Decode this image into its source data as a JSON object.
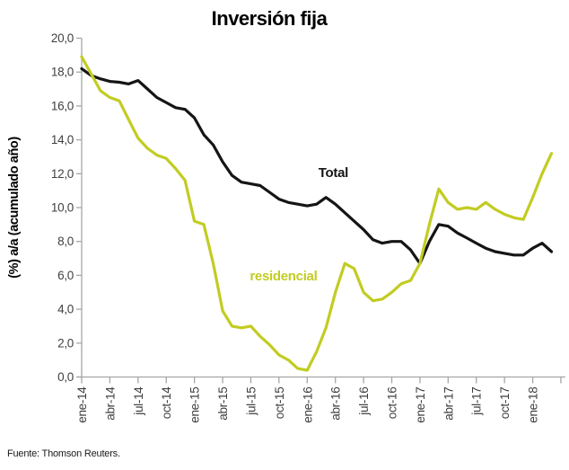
{
  "title": "Inversión fija",
  "source": "Fuente: Thomson Reuters.",
  "colors": {
    "total_line": "#151515",
    "residencial_line": "#c2cc21",
    "axis": "#a6a6a6",
    "tick_text": "#3f3f3f",
    "title_text": "#000000"
  },
  "chart_data": {
    "type": "line",
    "title": "Inversión fija",
    "xlabel": "",
    "ylabel": "(%) a/a (acumulado año)",
    "ylim": [
      0,
      20
    ],
    "ytick_step": 2,
    "ytick_labels": [
      "20,0",
      "18,0",
      "16,0",
      "14,0",
      "12,0",
      "10,0",
      "8,0",
      "6,0",
      "4,0",
      "2,0",
      "0,0"
    ],
    "xtick_labels": [
      "ene-14",
      "abr-14",
      "jul-14",
      "oct-14",
      "ene-15",
      "abr-15",
      "jul-15",
      "oct-15",
      "ene-16",
      "abr-16",
      "jul-16",
      "oct-16",
      "ene-17",
      "abr-17",
      "jul-17",
      "oct-17",
      "ene-18"
    ],
    "xtick_interval_months": 3,
    "x_start": "ene-14",
    "x_end": "mar-18",
    "grid": false,
    "legend_position": "inline-annotations",
    "series": [
      {
        "name": "Total",
        "color": "#151515",
        "values": [
          18.2,
          17.8,
          17.6,
          17.45,
          17.4,
          17.3,
          17.5,
          17.0,
          16.5,
          16.2,
          15.9,
          15.8,
          15.3,
          14.3,
          13.7,
          12.7,
          11.9,
          11.5,
          11.4,
          11.3,
          10.9,
          10.5,
          10.3,
          10.2,
          10.1,
          10.2,
          10.6,
          10.2,
          9.7,
          9.2,
          8.7,
          8.1,
          7.9,
          8.0,
          8.0,
          7.5,
          6.7,
          8.0,
          9.0,
          8.9,
          8.5,
          8.2,
          7.9,
          7.6,
          7.4,
          7.3,
          7.2,
          7.2,
          7.6,
          7.9,
          7.4
        ]
      },
      {
        "name": "residencial",
        "color": "#c2cc21",
        "values": [
          18.9,
          17.9,
          16.9,
          16.5,
          16.3,
          15.2,
          14.1,
          13.5,
          13.1,
          12.9,
          12.3,
          11.6,
          9.2,
          9.0,
          6.7,
          3.9,
          3.0,
          2.9,
          3.0,
          2.4,
          1.9,
          1.3,
          1.0,
          0.5,
          0.4,
          1.5,
          2.9,
          5.0,
          6.7,
          6.4,
          5.0,
          4.5,
          4.6,
          5.0,
          5.5,
          5.7,
          6.7,
          9.0,
          11.1,
          10.3,
          9.9,
          10.0,
          9.9,
          10.3,
          9.9,
          9.6,
          9.4,
          9.3,
          10.6,
          12.0,
          13.2
        ]
      }
    ],
    "annotations": [
      {
        "text": "Total",
        "color": "#151515",
        "month": 25.2,
        "value": 11.8
      },
      {
        "text": "residencial",
        "color": "#c2cc21",
        "month": 17.9,
        "value": 5.7
      }
    ]
  }
}
